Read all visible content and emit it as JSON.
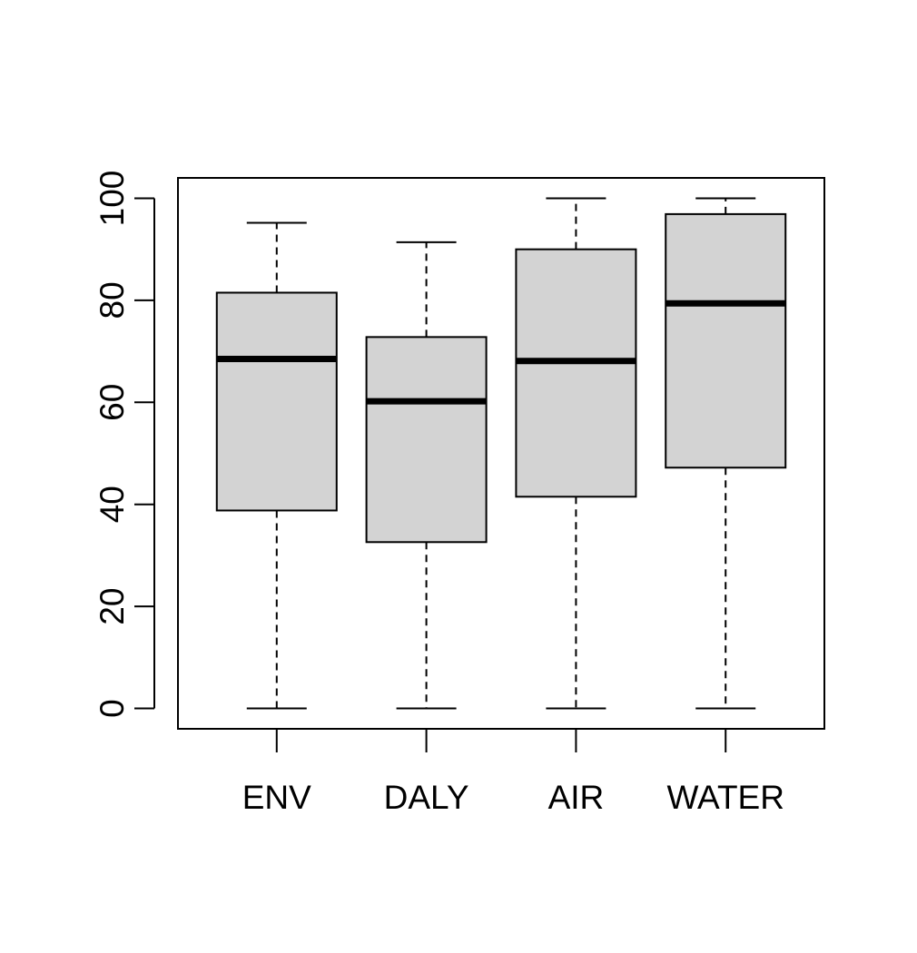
{
  "chart_data": {
    "type": "box",
    "title": "",
    "xlabel": "",
    "ylabel": "",
    "ylim": [
      -4,
      104
    ],
    "y_ticks": [
      0,
      20,
      40,
      60,
      80,
      100
    ],
    "y_tick_labels": [
      "0",
      "20",
      "40",
      "60",
      "80",
      "100"
    ],
    "categories": [
      "ENV",
      "DALY",
      "AIR",
      "WATER"
    ],
    "boxes": [
      {
        "label": "ENV",
        "min": 0,
        "q1": 38.8,
        "median": 68.5,
        "q3": 81.5,
        "max": 95.2
      },
      {
        "label": "DALY",
        "min": 0,
        "q1": 32.6,
        "median": 60.2,
        "q3": 72.8,
        "max": 91.4
      },
      {
        "label": "AIR",
        "min": 0,
        "q1": 41.5,
        "median": 68.1,
        "q3": 90.0,
        "max": 100
      },
      {
        "label": "WATER",
        "min": 0,
        "q1": 47.2,
        "median": 79.4,
        "q3": 96.9,
        "max": 100
      }
    ],
    "grid": false,
    "legend": "none",
    "colors": {
      "box_fill": "#d3d3d3",
      "stroke": "#000000",
      "background": "#ffffff"
    }
  }
}
